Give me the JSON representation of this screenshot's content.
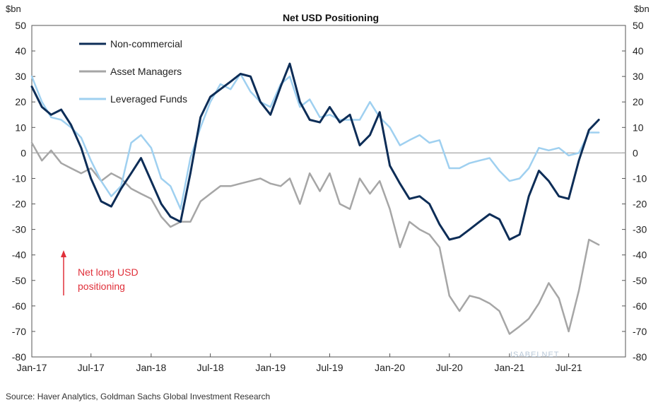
{
  "chart_data": {
    "type": "line",
    "title": "Net USD Positioning",
    "ylabel_left": "$bn",
    "ylabel_right": "$bn",
    "ylim": [
      -80,
      50
    ],
    "yticks": [
      50,
      40,
      30,
      20,
      10,
      0,
      -10,
      -20,
      -30,
      -40,
      -50,
      -60,
      -70,
      -80
    ],
    "x_range": [
      "2017-01",
      "2021-10"
    ],
    "xticks": [
      "Jan-17",
      "Jul-17",
      "Jan-18",
      "Jul-18",
      "Jan-19",
      "Jul-19",
      "Jan-20",
      "Jul-20",
      "Jan-21",
      "Jul-21"
    ],
    "legend_position": "top-left",
    "annotation": [
      "Net long USD",
      "positioning"
    ],
    "source": "Source: Haver Analytics, Goldman Sachs Global Investment Research",
    "watermark": "ISABELNET",
    "colors": {
      "Non-commercial": "#0d2d57",
      "Asset Managers": "#a6a6a6",
      "Leveraged Funds": "#9fd0f0",
      "zero_line": "#a6a6a6",
      "annotation": "#e0303a"
    },
    "series": [
      {
        "name": "Non-commercial",
        "x": [
          "2017-01-01",
          "2017-02-01",
          "2017-03-01",
          "2017-04-01",
          "2017-05-01",
          "2017-06-01",
          "2017-07-01",
          "2017-08-01",
          "2017-09-01",
          "2017-10-01",
          "2017-11-01",
          "2017-12-01",
          "2018-01-01",
          "2018-02-01",
          "2018-03-01",
          "2018-04-01",
          "2018-05-01",
          "2018-06-01",
          "2018-07-01",
          "2018-08-01",
          "2018-09-01",
          "2018-10-01",
          "2018-11-01",
          "2018-12-01",
          "2019-01-01",
          "2019-02-01",
          "2019-03-01",
          "2019-04-01",
          "2019-05-01",
          "2019-06-01",
          "2019-07-01",
          "2019-08-01",
          "2019-09-01",
          "2019-10-01",
          "2019-11-01",
          "2019-12-01",
          "2020-01-01",
          "2020-02-01",
          "2020-03-01",
          "2020-04-01",
          "2020-05-01",
          "2020-06-01",
          "2020-07-01",
          "2020-08-01",
          "2020-09-01",
          "2020-10-01",
          "2020-11-01",
          "2020-12-01",
          "2021-01-01",
          "2021-02-01",
          "2021-03-01",
          "2021-04-01",
          "2021-05-01",
          "2021-06-01",
          "2021-07-01",
          "2021-08-01",
          "2021-09-01",
          "2021-10-01"
        ],
        "values": [
          26,
          18,
          15,
          17,
          11,
          2,
          -10,
          -19,
          -21,
          -14,
          -8,
          -2,
          -11,
          -20,
          -25,
          -27,
          -8,
          14,
          22,
          25,
          28,
          31,
          30,
          20,
          15,
          26,
          35,
          20,
          13,
          12,
          18,
          12,
          15,
          3,
          7,
          16,
          -5,
          -12,
          -18,
          -17,
          -20,
          -28,
          -34,
          -33,
          -30,
          -27,
          -24,
          -26,
          -34,
          -32,
          -17,
          -7,
          -11,
          -17,
          -18,
          -3,
          9,
          13
        ]
      },
      {
        "name": "Asset Managers",
        "x": [
          "2017-01-01",
          "2017-02-01",
          "2017-03-01",
          "2017-04-01",
          "2017-05-01",
          "2017-06-01",
          "2017-07-01",
          "2017-08-01",
          "2017-09-01",
          "2017-10-01",
          "2017-11-01",
          "2017-12-01",
          "2018-01-01",
          "2018-02-01",
          "2018-03-01",
          "2018-04-01",
          "2018-05-01",
          "2018-06-01",
          "2018-07-01",
          "2018-08-01",
          "2018-09-01",
          "2018-10-01",
          "2018-11-01",
          "2018-12-01",
          "2019-01-01",
          "2019-02-01",
          "2019-03-01",
          "2019-04-01",
          "2019-05-01",
          "2019-06-01",
          "2019-07-01",
          "2019-08-01",
          "2019-09-01",
          "2019-10-01",
          "2019-11-01",
          "2019-12-01",
          "2020-01-01",
          "2020-02-01",
          "2020-03-01",
          "2020-04-01",
          "2020-05-01",
          "2020-06-01",
          "2020-07-01",
          "2020-08-01",
          "2020-09-01",
          "2020-10-01",
          "2020-11-01",
          "2020-12-01",
          "2021-01-01",
          "2021-02-01",
          "2021-03-01",
          "2021-04-01",
          "2021-05-01",
          "2021-06-01",
          "2021-07-01",
          "2021-08-01",
          "2021-09-01",
          "2021-10-01"
        ],
        "values": [
          4,
          -3,
          1,
          -4,
          -6,
          -8,
          -6,
          -11,
          -8,
          -10,
          -14,
          -16,
          -18,
          -25,
          -29,
          -27,
          -27,
          -19,
          -16,
          -13,
          -13,
          -12,
          -11,
          -10,
          -12,
          -13,
          -10,
          -20,
          -8,
          -15,
          -8,
          -20,
          -22,
          -10,
          -16,
          -11,
          -22,
          -37,
          -27,
          -30,
          -32,
          -37,
          -56,
          -62,
          -56,
          -57,
          -59,
          -62,
          -71,
          -68,
          -65,
          -59,
          -51,
          -57,
          -70,
          -54,
          -34,
          -36
        ]
      },
      {
        "name": "Leveraged Funds",
        "x": [
          "2017-01-01",
          "2017-02-01",
          "2017-03-01",
          "2017-04-01",
          "2017-05-01",
          "2017-06-01",
          "2017-07-01",
          "2017-08-01",
          "2017-09-01",
          "2017-10-01",
          "2017-11-01",
          "2017-12-01",
          "2018-01-01",
          "2018-02-01",
          "2018-03-01",
          "2018-04-01",
          "2018-05-01",
          "2018-06-01",
          "2018-07-01",
          "2018-08-01",
          "2018-09-01",
          "2018-10-01",
          "2018-11-01",
          "2018-12-01",
          "2019-01-01",
          "2019-02-01",
          "2019-03-01",
          "2019-04-01",
          "2019-05-01",
          "2019-06-01",
          "2019-07-01",
          "2019-08-01",
          "2019-09-01",
          "2019-10-01",
          "2019-11-01",
          "2019-12-01",
          "2020-01-01",
          "2020-02-01",
          "2020-03-01",
          "2020-04-01",
          "2020-05-01",
          "2020-06-01",
          "2020-07-01",
          "2020-08-01",
          "2020-09-01",
          "2020-10-01",
          "2020-11-01",
          "2020-12-01",
          "2021-01-01",
          "2021-02-01",
          "2021-03-01",
          "2021-04-01",
          "2021-05-01",
          "2021-06-01",
          "2021-07-01",
          "2021-08-01",
          "2021-09-01",
          "2021-10-01"
        ],
        "values": [
          30,
          20,
          14,
          13,
          10,
          6,
          -3,
          -11,
          -17,
          -13,
          4,
          7,
          2,
          -10,
          -13,
          -22,
          -2,
          10,
          20,
          27,
          25,
          31,
          24,
          20,
          18,
          27,
          30,
          18,
          21,
          14,
          15,
          13,
          13,
          13,
          20,
          14,
          10,
          3,
          5,
          7,
          4,
          5,
          -6,
          -6,
          -4,
          -3,
          -2,
          -7,
          -11,
          -10,
          -6,
          2,
          1,
          2,
          -1,
          0,
          8,
          8
        ]
      }
    ]
  }
}
